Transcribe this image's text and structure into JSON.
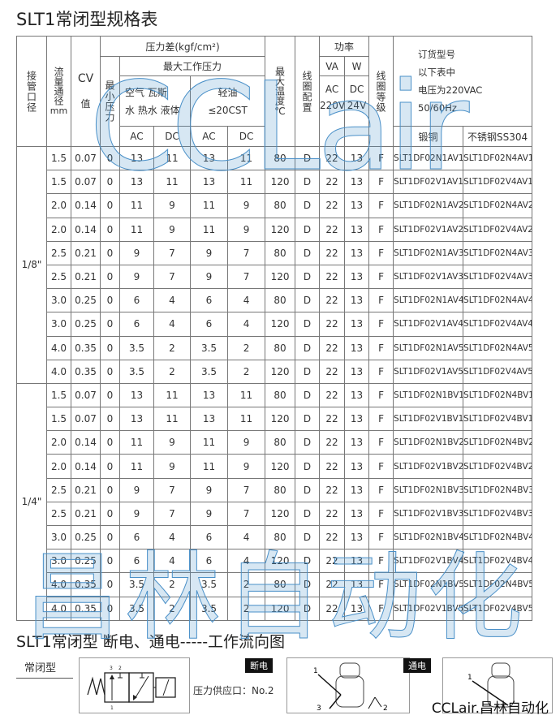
{
  "title": "SLT1常闭型规格表",
  "header": {
    "port": "接管口径",
    "flow": "流量通径",
    "flow_unit": "mm",
    "cv": "CV",
    "cv2": "值",
    "pressure_diff": "压力差(kgf/cm²)",
    "min_pressure": "最小压力",
    "max_pressure": "最大工作压力",
    "media1_line1": "空气 瓦斯",
    "media1_line2": "水 热水 液体",
    "media2_line1": "轻油",
    "media2_line2": "≤20CST",
    "ac": "AC",
    "dc": "DC",
    "max_temp": "最大温度",
    "temp_unit": "℃",
    "coil_config": "线圈配置",
    "power": "功率",
    "va": "VA",
    "w": "W",
    "ac220": "AC",
    "ac220v": "220V",
    "dc24": "DC",
    "dc24v": "24V",
    "coil_class": "线圈等级",
    "order": "订货型号",
    "order_l2": "以下表中",
    "order_l3": "电压为220VAC",
    "order_l4": "50/60Hz",
    "brass": "锻铜",
    "ss": "不锈钢SS304"
  },
  "groups": [
    {
      "port": "1/8\""
    },
    {
      "port": "1/4\""
    }
  ],
  "rows": [
    [
      "1.5",
      "0.07",
      "0",
      "13",
      "11",
      "13",
      "11",
      "80",
      "D",
      "22",
      "13",
      "F",
      "SLT1DF02N1AV1",
      "SLT1DF02N4AV1"
    ],
    [
      "1.5",
      "0.07",
      "0",
      "13",
      "11",
      "13",
      "11",
      "120",
      "D",
      "22",
      "13",
      "F",
      "SLT1DF02V1AV1",
      "SLT1DF02V4AV1"
    ],
    [
      "2.0",
      "0.14",
      "0",
      "11",
      "9",
      "11",
      "9",
      "80",
      "D",
      "22",
      "13",
      "F",
      "SLT1DF02N1AV2",
      "SLT1DF02N4AV2"
    ],
    [
      "2.0",
      "0.14",
      "0",
      "11",
      "9",
      "11",
      "9",
      "120",
      "D",
      "22",
      "13",
      "F",
      "SLT1DF02V1AV2",
      "SLT1DF02V4AV2"
    ],
    [
      "2.5",
      "0.21",
      "0",
      "9",
      "7",
      "9",
      "7",
      "80",
      "D",
      "22",
      "13",
      "F",
      "SLT1DF02N1AV3",
      "SLT1DF02N4AV3"
    ],
    [
      "2.5",
      "0.21",
      "0",
      "9",
      "7",
      "9",
      "7",
      "120",
      "D",
      "22",
      "13",
      "F",
      "SLT1DF02V1AV3",
      "SLT1DF02V4AV3"
    ],
    [
      "3.0",
      "0.25",
      "0",
      "6",
      "4",
      "6",
      "4",
      "80",
      "D",
      "22",
      "13",
      "F",
      "SLT1DF02N1AV4",
      "SLT1DF02N4AV4"
    ],
    [
      "3.0",
      "0.25",
      "0",
      "6",
      "4",
      "6",
      "4",
      "120",
      "D",
      "22",
      "13",
      "F",
      "SLT1DF02V1AV4",
      "SLT1DF02V4AV4"
    ],
    [
      "4.0",
      "0.35",
      "0",
      "3.5",
      "2",
      "3.5",
      "2",
      "80",
      "D",
      "22",
      "13",
      "F",
      "SLT1DF02N1AV5",
      "SLT1DF02N4AV5"
    ],
    [
      "4.0",
      "0.35",
      "0",
      "3.5",
      "2",
      "3.5",
      "2",
      "120",
      "D",
      "22",
      "13",
      "F",
      "SLT1DF02V1AV5",
      "SLT1DF02V4AV5"
    ],
    [
      "1.5",
      "0.07",
      "0",
      "13",
      "11",
      "13",
      "11",
      "80",
      "D",
      "22",
      "13",
      "F",
      "SLT1DF02N1BV1",
      "SLT1DF02N4BV1"
    ],
    [
      "1.5",
      "0.07",
      "0",
      "13",
      "11",
      "13",
      "11",
      "120",
      "D",
      "22",
      "13",
      "F",
      "SLT1DF02V1BV1",
      "SLT1DF02V4BV1"
    ],
    [
      "2.0",
      "0.14",
      "0",
      "11",
      "9",
      "11",
      "9",
      "80",
      "D",
      "22",
      "13",
      "F",
      "SLT1DF02N1BV2",
      "SLT1DF02N4BV2"
    ],
    [
      "2.0",
      "0.14",
      "0",
      "11",
      "9",
      "11",
      "9",
      "120",
      "D",
      "22",
      "13",
      "F",
      "SLT1DF02V1BV2",
      "SLT1DF02V4BV2"
    ],
    [
      "2.5",
      "0.21",
      "0",
      "9",
      "7",
      "9",
      "7",
      "80",
      "D",
      "22",
      "13",
      "F",
      "SLT1DF02N1BV3",
      "SLT1DF02N4BV3"
    ],
    [
      "2.5",
      "0.21",
      "0",
      "9",
      "7",
      "9",
      "7",
      "120",
      "D",
      "22",
      "13",
      "F",
      "SLT1DF02V1BV3",
      "SLT1DF02V4BV3"
    ],
    [
      "3.0",
      "0.25",
      "0",
      "6",
      "4",
      "6",
      "4",
      "80",
      "D",
      "22",
      "13",
      "F",
      "SLT1DF02N1BV4",
      "SLT1DF02N4BV4"
    ],
    [
      "3.0",
      "0.25",
      "0",
      "6",
      "4",
      "6",
      "4",
      "120",
      "D",
      "22",
      "13",
      "F",
      "SLT1DF02V1BV4",
      "SLT1DF02V4BV4"
    ],
    [
      "4.0",
      "0.35",
      "0",
      "3.5",
      "2",
      "3.5",
      "2",
      "80",
      "D",
      "22",
      "13",
      "F",
      "SLT1DF02N1BV5",
      "SLT1DF02N4BV5"
    ],
    [
      "4.0",
      "0.35",
      "0",
      "3.5",
      "2",
      "3.5",
      "2",
      "120",
      "D",
      "22",
      "13",
      "F",
      "SLT1DF02V1BV5",
      "SLT1DF02V4BV5"
    ]
  ],
  "flow_section": {
    "title": "SLT1常闭型 断电、通电-----工作流向图",
    "type_label": "常闭型",
    "supply_port": "压力供应口：No.2",
    "off_label": "断电",
    "on_label": "通电",
    "port1": "1",
    "port2": "2",
    "port3": "3"
  },
  "watermark": {
    "top": "CCLair",
    "bottom": "昌林自动化",
    "brand": "CCLair.昌林自动化",
    "color": "#4a90c8"
  }
}
